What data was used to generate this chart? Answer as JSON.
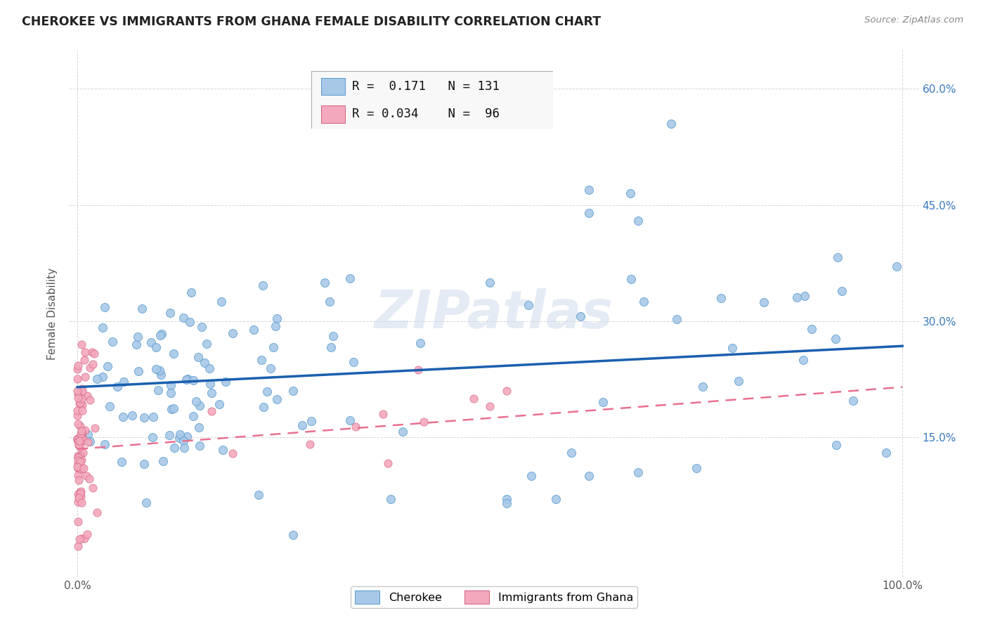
{
  "title": "CHEROKEE VS IMMIGRANTS FROM GHANA FEMALE DISABILITY CORRELATION CHART",
  "source": "Source: ZipAtlas.com",
  "ylabel": "Female Disability",
  "xlim": [
    -0.01,
    1.02
  ],
  "ylim": [
    -0.03,
    0.65
  ],
  "xtick_positions": [
    0.0,
    1.0
  ],
  "xticklabels": [
    "0.0%",
    "100.0%"
  ],
  "ytick_positions": [
    0.15,
    0.3,
    0.45,
    0.6
  ],
  "ytick_labels": [
    "15.0%",
    "30.0%",
    "45.0%",
    "60.0%"
  ],
  "cherokee_color": "#a8c8e8",
  "cherokee_edge_color": "#5599cc",
  "ghana_color": "#f4a8bc",
  "ghana_edge_color": "#d06080",
  "cherokee_line_color": "#1a5faf",
  "ghana_line_color": "#e87090",
  "legend_R1": "0.171",
  "legend_N1": "131",
  "legend_R2": "0.034",
  "legend_N2": "96",
  "watermark": "ZIPatlas",
  "background_color": "#ffffff",
  "grid_color": "#cccccc",
  "title_color": "#222222",
  "right_tick_color": "#3a7abf",
  "cherokee_line_y0": 0.215,
  "cherokee_line_y1": 0.268,
  "ghana_line_y0": 0.135,
  "ghana_line_y1": 0.215
}
